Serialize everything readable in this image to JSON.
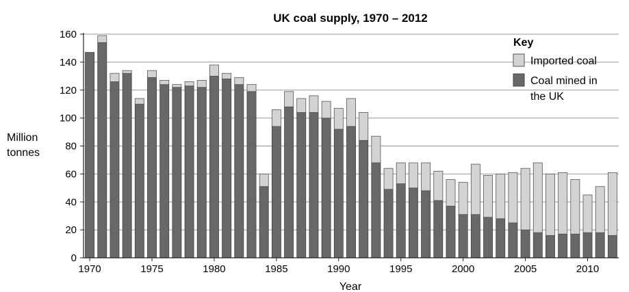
{
  "chart_data": {
    "type": "bar",
    "stacked": true,
    "title": "UK coal supply, 1970 – 2012",
    "xlabel": "Year",
    "ylabel_lines": [
      "Million",
      "tonnes"
    ],
    "ylim": [
      0,
      160
    ],
    "yticks": [
      0,
      20,
      40,
      60,
      80,
      100,
      120,
      140,
      160
    ],
    "xticks": [
      1970,
      1975,
      1980,
      1985,
      1990,
      1995,
      2000,
      2005,
      2010
    ],
    "grid": true,
    "legend_position": "right",
    "legend": {
      "title": "Key",
      "items": [
        {
          "label_lines": [
            "Imported coal"
          ],
          "color": "#d3d3d3"
        },
        {
          "label_lines": [
            "Coal mined in",
            "the UK"
          ],
          "color": "#686868"
        }
      ]
    },
    "categories": [
      1970,
      1971,
      1972,
      1973,
      1974,
      1975,
      1976,
      1977,
      1978,
      1979,
      1980,
      1981,
      1982,
      1983,
      1984,
      1985,
      1986,
      1987,
      1988,
      1989,
      1990,
      1991,
      1992,
      1993,
      1994,
      1995,
      1996,
      1997,
      1998,
      1999,
      2000,
      2001,
      2002,
      2003,
      2004,
      2005,
      2006,
      2007,
      2008,
      2009,
      2010,
      2011,
      2012
    ],
    "series": [
      {
        "name": "Coal mined in the UK",
        "color": "#686868",
        "values": [
          147,
          154,
          126,
          132,
          110,
          129,
          124,
          122,
          123,
          122,
          130,
          128,
          124,
          119,
          51,
          94,
          108,
          104,
          104,
          100,
          92,
          94,
          84,
          68,
          49,
          53,
          50,
          48,
          41,
          37,
          31,
          31,
          29,
          28,
          25,
          20,
          18,
          16,
          17,
          17,
          18,
          18,
          16
        ]
      },
      {
        "name": "Imported coal",
        "color": "#d3d3d3",
        "values": [
          0,
          5,
          6,
          2,
          4,
          5,
          3,
          2,
          3,
          5,
          8,
          4,
          5,
          5,
          9,
          12,
          11,
          10,
          12,
          12,
          15,
          20,
          20,
          19,
          15,
          15,
          18,
          20,
          21,
          19,
          23,
          36,
          30,
          32,
          36,
          44,
          50,
          44,
          44,
          39,
          27,
          33,
          45
        ]
      }
    ]
  }
}
